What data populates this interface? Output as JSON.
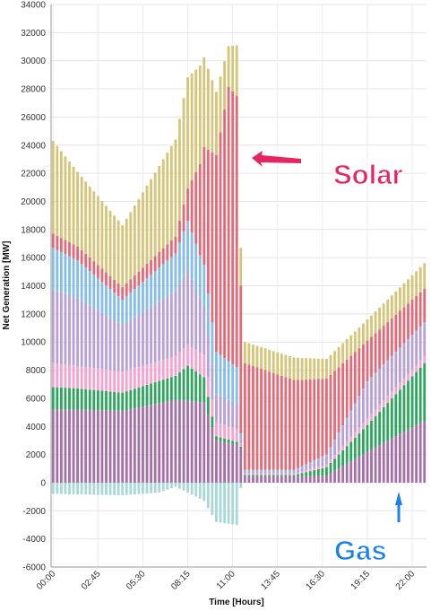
{
  "chart_data": {
    "type": "bar",
    "stacked": true,
    "xlabel": "Time [Hours]",
    "ylabel": "Net Generation [MW]",
    "ylim": [
      -6000,
      34000
    ],
    "yticks": [
      -6000,
      -4000,
      -2000,
      0,
      2000,
      4000,
      6000,
      8000,
      10000,
      12000,
      14000,
      16000,
      18000,
      20000,
      22000,
      24000,
      26000,
      28000,
      30000,
      32000,
      34000
    ],
    "x_tick_labels": [
      "00:00",
      "02:45",
      "05:30",
      "08:15",
      "11:00",
      "13:45",
      "16:30",
      "19:15",
      "22:00"
    ],
    "x_tick_indices": [
      0,
      11,
      22,
      33,
      44,
      55,
      66,
      77,
      88
    ],
    "grid": true,
    "legend": "none",
    "colors": {
      "base": "#a56fa8",
      "green": "#2fa65e",
      "pink": "#f4a3cf",
      "lavender": "#b7a0d6",
      "blue": "#86bde8",
      "solar": "#e46a78",
      "top": "#d4c57a",
      "gas": "#a9d8d6"
    },
    "periods": [
      {
        "bars": 46,
        "start": 0,
        "base": [
          [
            0,
            5200
          ],
          [
            6,
            5200
          ],
          [
            17,
            5100
          ],
          [
            30,
            5900
          ],
          [
            37,
            5700
          ],
          [
            40,
            3000
          ],
          [
            45,
            2700
          ]
        ],
        "green": [
          [
            0,
            1600
          ],
          [
            6,
            1500
          ],
          [
            17,
            1300
          ],
          [
            30,
            1700
          ],
          [
            33,
            2500
          ],
          [
            37,
            1800
          ],
          [
            40,
            300
          ],
          [
            45,
            200
          ]
        ],
        "pink": [
          [
            0,
            1700
          ],
          [
            6,
            1600
          ],
          [
            17,
            1500
          ],
          [
            30,
            1400
          ],
          [
            33,
            1500
          ],
          [
            37,
            1600
          ],
          [
            40,
            1000
          ],
          [
            45,
            900
          ]
        ],
        "lavender": [
          [
            0,
            5200
          ],
          [
            6,
            4800
          ],
          [
            17,
            3300
          ],
          [
            30,
            4600
          ],
          [
            33,
            5300
          ],
          [
            37,
            3400
          ],
          [
            40,
            2000
          ],
          [
            45,
            1800
          ]
        ],
        "blue": [
          [
            0,
            3000
          ],
          [
            6,
            2700
          ],
          [
            17,
            1800
          ],
          [
            30,
            2700
          ],
          [
            33,
            3500
          ],
          [
            36,
            3000
          ],
          [
            40,
            3000
          ],
          [
            45,
            2600
          ]
        ],
        "solar": [
          [
            0,
            1000
          ],
          [
            6,
            1000
          ],
          [
            17,
            900
          ],
          [
            30,
            1200
          ],
          [
            33,
            2300
          ],
          [
            36,
            6500
          ],
          [
            40,
            14000
          ],
          [
            43,
            19500
          ],
          [
            45,
            19300
          ]
        ],
        "top": [
          [
            0,
            6600
          ],
          [
            6,
            5300
          ],
          [
            17,
            4400
          ],
          [
            30,
            6900
          ],
          [
            33,
            7900
          ],
          [
            36,
            7000
          ],
          [
            40,
            4500
          ],
          [
            43,
            2900
          ],
          [
            45,
            3600
          ]
        ],
        "gas": [
          [
            0,
            -800
          ],
          [
            17,
            -900
          ],
          [
            26,
            -700
          ],
          [
            30,
            -300
          ],
          [
            33,
            -700
          ],
          [
            37,
            -1300
          ],
          [
            40,
            -2800
          ],
          [
            45,
            -3000
          ]
        ]
      },
      {
        "bars": 1,
        "start": 46,
        "base": [
          [
            0,
            2400
          ]
        ],
        "green": [
          [
            0,
            150
          ]
        ],
        "pink": [
          [
            0,
            250
          ]
        ],
        "lavender": [
          [
            0,
            300
          ]
        ],
        "blue": [
          [
            0,
            400
          ]
        ],
        "solar": [
          [
            0,
            10500
          ]
        ],
        "top": [
          [
            0,
            2700
          ]
        ],
        "gas": [
          [
            0,
            -400
          ]
        ]
      },
      {
        "bars": 45,
        "start": 47,
        "base": [
          [
            0,
            450
          ],
          [
            14,
            450
          ],
          [
            20,
            500
          ],
          [
            30,
            2200
          ],
          [
            44,
            4400
          ]
        ],
        "green": [
          [
            0,
            100
          ],
          [
            12,
            100
          ],
          [
            20,
            600
          ],
          [
            30,
            1900
          ],
          [
            44,
            4100
          ]
        ],
        "pink": [
          [
            0,
            100
          ],
          [
            12,
            100
          ],
          [
            20,
            200
          ],
          [
            30,
            500
          ],
          [
            44,
            500
          ]
        ],
        "lavender": [
          [
            0,
            150
          ],
          [
            12,
            150
          ],
          [
            20,
            600
          ],
          [
            30,
            2500
          ],
          [
            44,
            2300
          ]
        ],
        "blue": [
          [
            0,
            100
          ],
          [
            44,
            100
          ]
        ],
        "solar": [
          [
            0,
            7600
          ],
          [
            12,
            6400
          ],
          [
            20,
            5400
          ],
          [
            30,
            2900
          ],
          [
            44,
            2400
          ]
        ],
        "top": [
          [
            0,
            1500
          ],
          [
            12,
            1600
          ],
          [
            20,
            1400
          ],
          [
            30,
            1500
          ],
          [
            44,
            1800
          ]
        ],
        "gas": [
          [
            0,
            0
          ],
          [
            44,
            0
          ]
        ]
      }
    ],
    "annotations": [
      {
        "text": "Solar",
        "color": "#e6245e"
      },
      {
        "text": "Gas",
        "color": "#1b82e8"
      }
    ]
  }
}
